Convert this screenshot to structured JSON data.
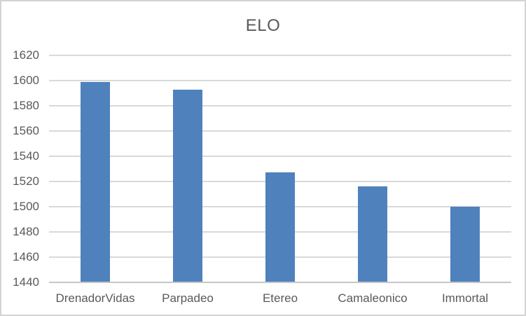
{
  "window": {
    "background_color": "#ffffff",
    "border_color": "#d3d3d3"
  },
  "chart_data": {
    "type": "bar",
    "title": "ELO",
    "categories": [
      "DrenadorVidas",
      "Parpadeo",
      "Etereo",
      "Camaleonico",
      "Immortal"
    ],
    "values": [
      1599,
      1593,
      1527,
      1516,
      1500
    ],
    "xlabel": "",
    "ylabel": "",
    "ylim": [
      1440,
      1620
    ],
    "ytick_step": 20,
    "yticks": [
      1440,
      1460,
      1480,
      1500,
      1520,
      1540,
      1560,
      1580,
      1600,
      1620
    ],
    "grid": true,
    "legend": "none",
    "colors": {
      "bar": "#4f81bd",
      "gridline": "#d9d9d9",
      "axis_line": "#c6c6c6",
      "tick_text": "#595959",
      "title_text": "#595959"
    }
  }
}
